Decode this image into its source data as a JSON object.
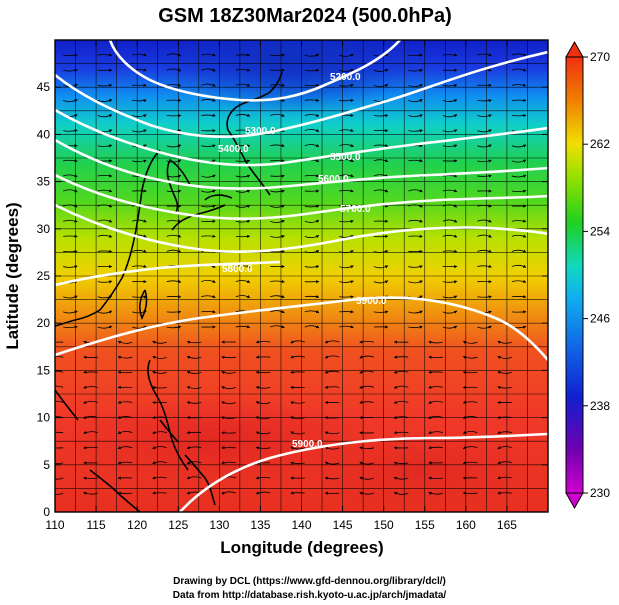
{
  "title": "GSM 18Z30Mar2024 (500.0hPa)",
  "x_axis": {
    "label": "Longitude (degrees)",
    "range": [
      110,
      170
    ],
    "ticks": [
      "110",
      "115",
      "120",
      "125",
      "130",
      "135",
      "140",
      "145",
      "150",
      "155",
      "160",
      "165"
    ]
  },
  "y_axis": {
    "label": "Latitude  (degrees)",
    "range": [
      0,
      50
    ],
    "ticks": [
      "0",
      "5",
      "10",
      "15",
      "20",
      "25",
      "30",
      "35",
      "40",
      "45"
    ]
  },
  "colorbar": {
    "range": [
      230,
      270
    ],
    "ticks": [
      "230",
      "238",
      "246",
      "254",
      "262",
      "270"
    ],
    "colors": [
      "#d000d0",
      "#7000b0",
      "#1020d0",
      "#1090f0",
      "#10d8c0",
      "#20d020",
      "#90e000",
      "#f0e000",
      "#f08000",
      "#f03010",
      "#e82020"
    ]
  },
  "contour_labels": [
    "5200.0",
    "5300.0",
    "5400.0",
    "5500.0",
    "5600.0",
    "5700.0",
    "5800.0",
    "5900.0",
    "5900.0"
  ],
  "credits": [
    "Drawing by DCL (https://www.gfd-dennou.org/library/dcl/)",
    "Data from http://database.rish.kyoto-u.ac.jp/arch/jmadata/"
  ]
}
